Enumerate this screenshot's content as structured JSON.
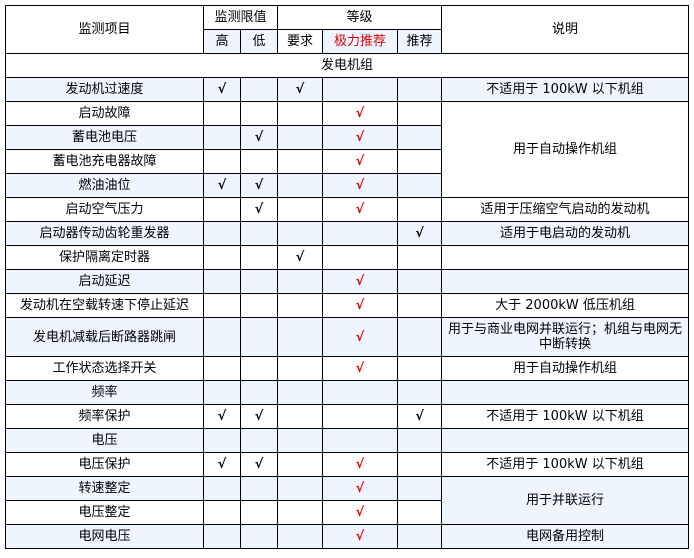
{
  "header": {
    "item": "监测项目",
    "limit": "监测限值",
    "grade": "等级",
    "note": "说明",
    "high": "高",
    "low": "低",
    "required": "要求",
    "strongly_recommended": "极力推荐",
    "recommended": "推荐"
  },
  "group": "发电机组",
  "check_symbol": "√",
  "colors": {
    "strong": "#e00000",
    "shade": "#eef5ff"
  },
  "rows": [
    {
      "item": "发动机过速度",
      "high": true,
      "low": false,
      "req": true,
      "strong": false,
      "rec": false,
      "note": "不适用于 100kW 以下机组"
    },
    {
      "item": "启动故障",
      "strong": true,
      "note": "用于自动操作机组",
      "note_span": 4
    },
    {
      "item": "蓄电池电压",
      "low": true,
      "strong": true
    },
    {
      "item": "蓄电池充电器故障",
      "strong": true
    },
    {
      "item": "燃油油位",
      "high": true,
      "low": true,
      "strong": true
    },
    {
      "item": "启动空气压力",
      "low": true,
      "strong": true,
      "note": "适用于压缩空气启动的发动机"
    },
    {
      "item": "启动器传动齿轮重发器",
      "rec": true,
      "note": "适用于电启动的发动机"
    },
    {
      "item": "保护隔离定时器",
      "req": true,
      "note": ""
    },
    {
      "item": "启动延迟",
      "strong": true,
      "note": ""
    },
    {
      "item": "发动机在空载转速下停止延迟",
      "strong": true,
      "note": "大于 2000kW 低压机组"
    },
    {
      "item": "发电机减载后断路器跳闸",
      "strong": true,
      "note": "用于与商业电网并联运行；机组与电网无中断转换",
      "tall": true
    },
    {
      "item": "工作状态选择开关",
      "strong": true,
      "note": "用于自动操作机组"
    },
    {
      "item": "频率",
      "note": ""
    },
    {
      "item": "频率保护",
      "high": true,
      "low": true,
      "rec": true,
      "note": "不适用于 100kW 以下机组"
    },
    {
      "item": "电压",
      "note": ""
    },
    {
      "item": "电压保护",
      "high": true,
      "low": true,
      "strong": true,
      "note": "不适用于 100kW 以下机组"
    },
    {
      "item": "转速整定",
      "strong": true,
      "note": "用于并联运行",
      "note_span": 2
    },
    {
      "item": "电压整定",
      "strong": true
    },
    {
      "item": "电网电压",
      "strong": true,
      "note": "电网备用控制"
    }
  ]
}
